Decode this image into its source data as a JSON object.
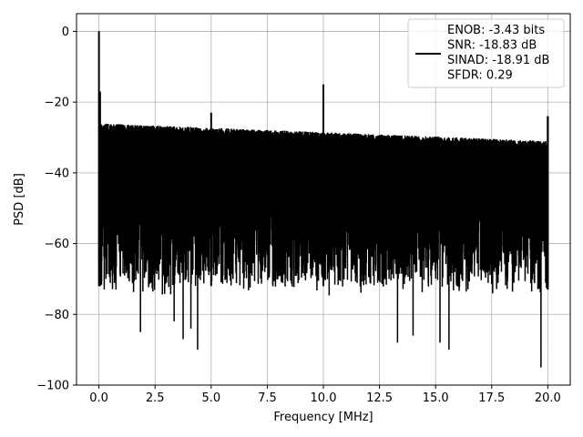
{
  "chart_data": {
    "type": "line",
    "title": "",
    "xlabel": "Frequency [MHz]",
    "ylabel": "PSD [dB]",
    "xlim": [
      -1.0,
      21.0
    ],
    "ylim": [
      -100,
      5
    ],
    "xticks": [
      0.0,
      2.5,
      5.0,
      7.5,
      10.0,
      12.5,
      15.0,
      17.5,
      20.0
    ],
    "xtick_labels": [
      "0.0",
      "2.5",
      "5.0",
      "7.5",
      "10.0",
      "12.5",
      "15.0",
      "17.5",
      "20.0"
    ],
    "yticks": [
      0,
      -20,
      -40,
      -60,
      -80,
      -100
    ],
    "ytick_labels": [
      "0",
      "−20",
      "−40",
      "−60",
      "−80",
      "−100"
    ],
    "grid": true,
    "legend_position": "top-right",
    "legend": [
      "ENOB: -3.43 bits",
      "SNR: -18.83 dB",
      "SINAD: -18.91 dB",
      "SFDR: 0.29"
    ],
    "line_color": "#000000",
    "x_range": [
      0.0,
      20.0
    ],
    "noise_floor_start": -26,
    "noise_floor_end": -31,
    "noise_dip_typical": -72,
    "spikes": [
      {
        "x": 0.0,
        "y": 0
      },
      {
        "x": 0.05,
        "y": -17
      },
      {
        "x": 5.0,
        "y": -23
      },
      {
        "x": 10.0,
        "y": -15
      },
      {
        "x": 20.0,
        "y": -24
      }
    ],
    "deep_dips": [
      {
        "x": 1.85,
        "y": -85
      },
      {
        "x": 3.35,
        "y": -82
      },
      {
        "x": 3.75,
        "y": -87
      },
      {
        "x": 4.1,
        "y": -84
      },
      {
        "x": 4.4,
        "y": -90
      },
      {
        "x": 13.3,
        "y": -88
      },
      {
        "x": 14.0,
        "y": -86
      },
      {
        "x": 15.2,
        "y": -88
      },
      {
        "x": 15.6,
        "y": -90
      },
      {
        "x": 19.7,
        "y": -95
      }
    ]
  }
}
